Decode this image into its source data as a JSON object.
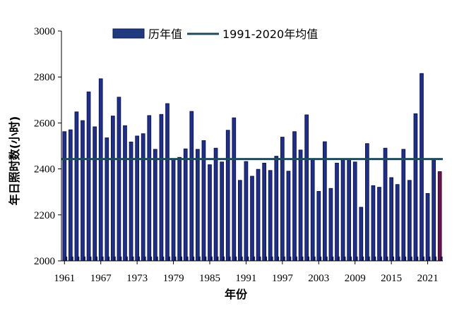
{
  "chart_data": {
    "type": "bar",
    "xlabel": "年份",
    "ylabel": "年日照时数(小时)",
    "ylim": [
      2000,
      3000
    ],
    "yticks": [
      2000,
      2200,
      2400,
      2600,
      2800,
      3000
    ],
    "xtick_labels": [
      "1961",
      "1967",
      "1973",
      "1979",
      "1985",
      "1991",
      "1997",
      "2003",
      "2009",
      "2015",
      "2021"
    ],
    "grid": false,
    "legend_position": "top",
    "x": [
      1961,
      1962,
      1963,
      1964,
      1965,
      1966,
      1967,
      1968,
      1969,
      1970,
      1971,
      1972,
      1973,
      1974,
      1975,
      1976,
      1977,
      1978,
      1979,
      1980,
      1981,
      1982,
      1983,
      1984,
      1985,
      1986,
      1987,
      1988,
      1989,
      1990,
      1991,
      1992,
      1993,
      1994,
      1995,
      1996,
      1997,
      1998,
      1999,
      2000,
      2001,
      2002,
      2003,
      2004,
      2005,
      2006,
      2007,
      2008,
      2009,
      2010,
      2011,
      2012,
      2013,
      2014,
      2015,
      2016,
      2017,
      2018,
      2019,
      2020,
      2021,
      2022,
      2023
    ],
    "series": [
      {
        "name": "历年值",
        "color": "#1f2f8f",
        "highlight_color": "#6b1050",
        "values": [
          2562,
          2570,
          2648,
          2610,
          2735,
          2583,
          2792,
          2535,
          2630,
          2712,
          2588,
          2517,
          2543,
          2553,
          2632,
          2485,
          2637,
          2684,
          2440,
          2450,
          2487,
          2650,
          2485,
          2523,
          2418,
          2490,
          2430,
          2568,
          2622,
          2350,
          2432,
          2368,
          2398,
          2425,
          2393,
          2455,
          2538,
          2390,
          2562,
          2482,
          2635,
          2443,
          2302,
          2518,
          2315,
          2425,
          2444,
          2443,
          2430,
          2233,
          2510,
          2327,
          2320,
          2490,
          2362,
          2332,
          2485,
          2350,
          2640,
          2815,
          2293,
          2443,
          2388
        ]
      },
      {
        "name": "1991-2020年均值",
        "type": "line",
        "color": "#1e4a5c",
        "value": 2443
      }
    ]
  }
}
